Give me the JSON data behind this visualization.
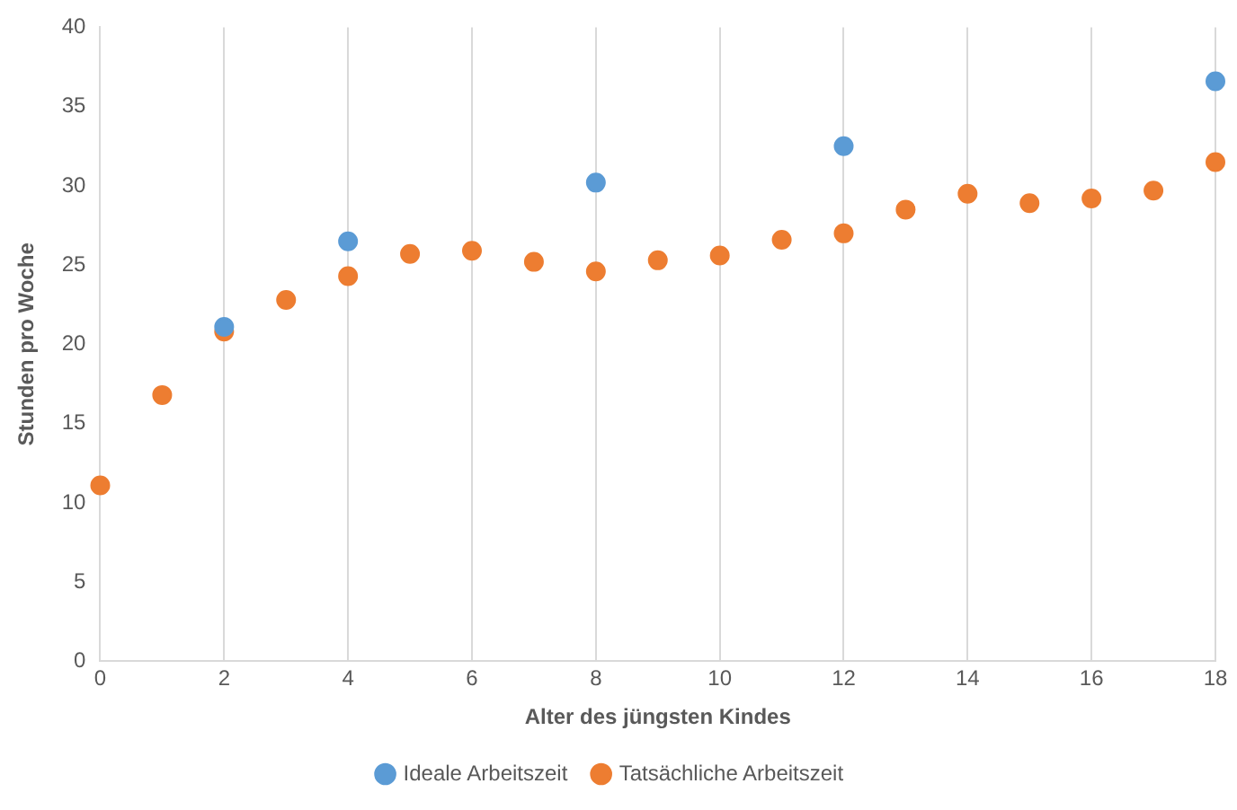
{
  "chart_data": {
    "type": "scatter",
    "xlabel": "Alter des jüngsten Kindes",
    "ylabel": "Stunden pro Woche",
    "xlim": [
      0,
      18
    ],
    "xticks": [
      0,
      2,
      4,
      6,
      8,
      10,
      12,
      14,
      16,
      18
    ],
    "ylim": [
      0,
      40
    ],
    "yticks": [
      0,
      5,
      10,
      15,
      20,
      25,
      30,
      35,
      40
    ],
    "grid": "x",
    "legend": "bottom",
    "marker": "circle",
    "series": [
      {
        "name": "Ideale Arbeitszeit",
        "color": "#5b9bd5",
        "x": [
          2,
          4,
          8,
          12,
          18
        ],
        "values": [
          21.1,
          26.5,
          30.2,
          32.5,
          36.6
        ]
      },
      {
        "name": "Tatsächliche Arbeitszeit",
        "color": "#ed7d31",
        "x": [
          0,
          1,
          2,
          3,
          4,
          5,
          6,
          7,
          8,
          9,
          10,
          11,
          12,
          13,
          14,
          15,
          16,
          17,
          18
        ],
        "values": [
          11.1,
          16.8,
          20.8,
          22.8,
          24.3,
          25.7,
          25.9,
          25.2,
          24.6,
          25.3,
          25.6,
          26.6,
          27.0,
          28.5,
          29.5,
          28.9,
          29.2,
          29.7,
          31.5
        ]
      }
    ]
  }
}
